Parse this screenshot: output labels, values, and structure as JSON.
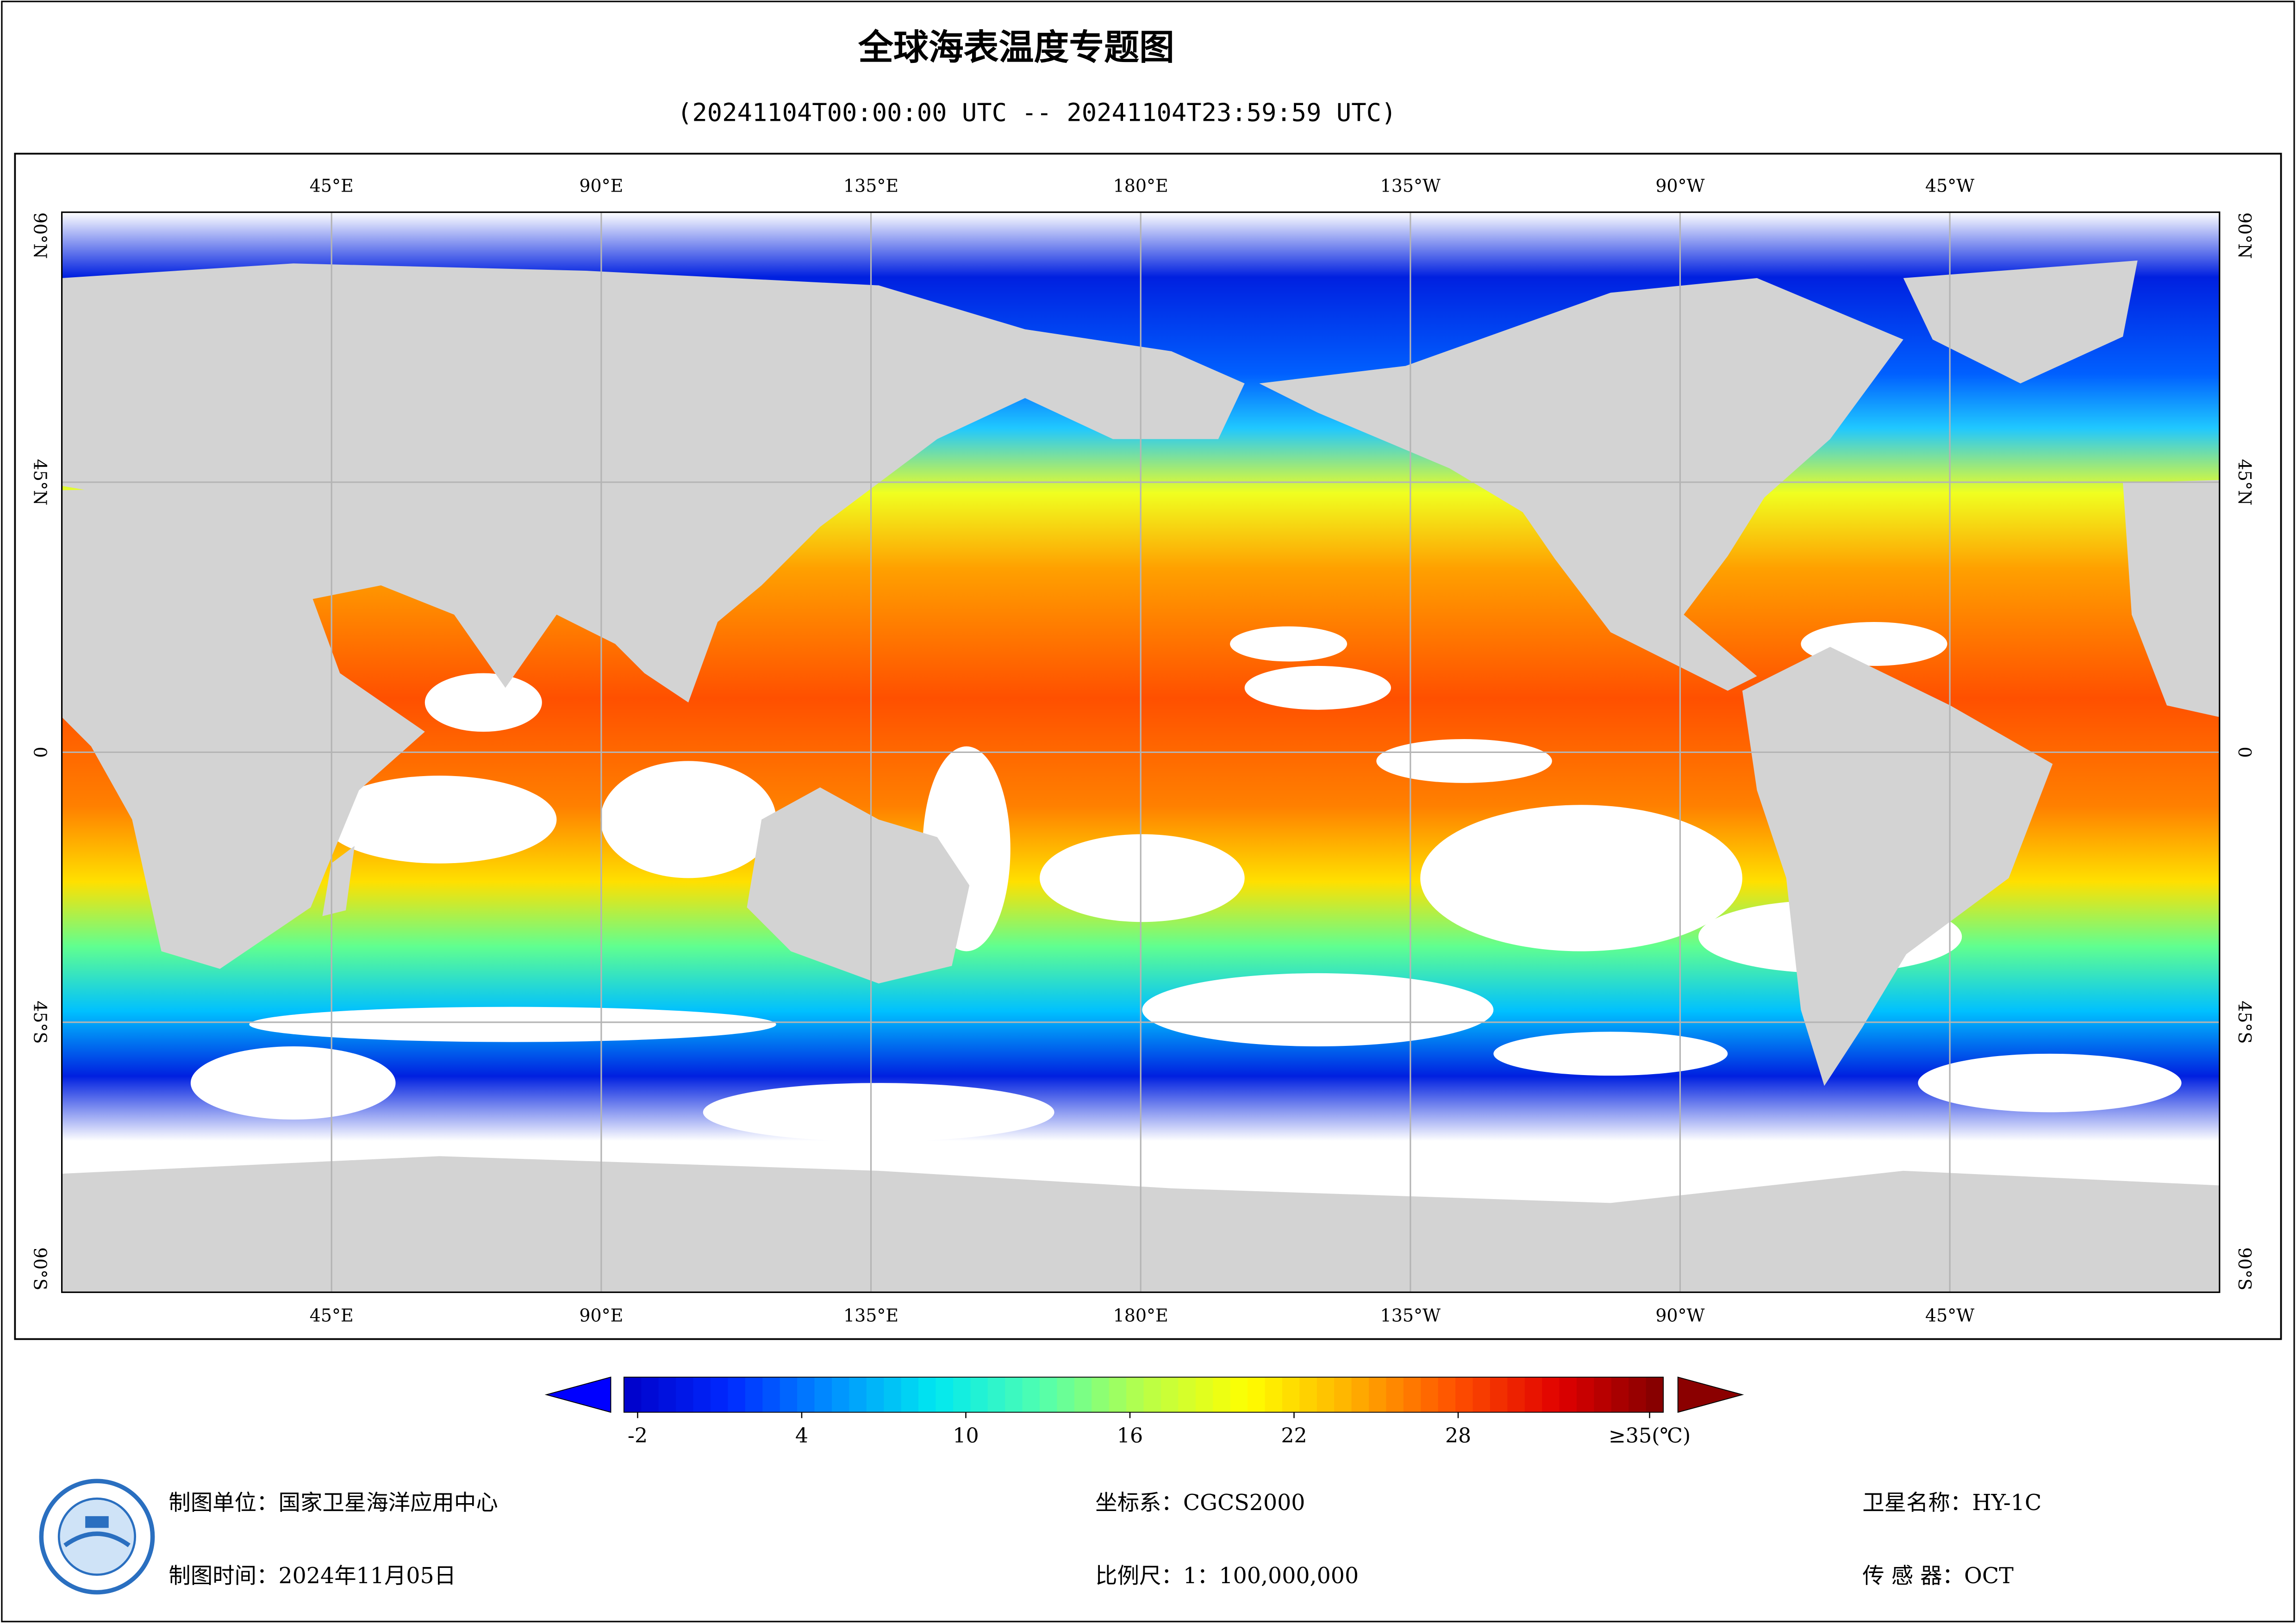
{
  "title": "全球海表温度专题图",
  "subtitle": "(20241104T00:00:00 UTC -- 20241104T23:59:59 UTC)",
  "map": {
    "lon_range": [
      0,
      360
    ],
    "lat_range": [
      -90,
      90
    ],
    "lon_ticks": [
      {
        "value": 45,
        "label": "45°E"
      },
      {
        "value": 90,
        "label": "90°E"
      },
      {
        "value": 135,
        "label": "135°E"
      },
      {
        "value": 180,
        "label": "180°E"
      },
      {
        "value": 225,
        "label": "135°W"
      },
      {
        "value": 270,
        "label": "90°W"
      },
      {
        "value": 315,
        "label": "45°W"
      }
    ],
    "lat_ticks": [
      {
        "value": 90,
        "label": "90°N"
      },
      {
        "value": 45,
        "label": "45°N"
      },
      0,
      {
        "value": -45,
        "label": "45°S"
      },
      {
        "value": -90,
        "label": "90°S"
      }
    ],
    "grid": true,
    "grid_color": "#b4b4b4"
  },
  "colorbar": {
    "range": [
      -2.5,
      35.5
    ],
    "ticks": [
      -2,
      4,
      10,
      16,
      22,
      28,
      {
        "value": 35,
        "label": "≥35(℃)"
      }
    ],
    "colors": [
      "#0000c8",
      "#0028ff",
      "#0090ff",
      "#00e8f0",
      "#50ffb0",
      "#b8ff48",
      "#ffff00",
      "#ffb000",
      "#ff5000",
      "#e00000",
      "#800000"
    ]
  },
  "footer": {
    "producer": "制图单位：国家卫星海洋应用中心",
    "date": "制图时间：2024年11月05日",
    "crs": "坐标系：CGCS2000",
    "scale": "比例尺：1：100,000,000",
    "satellite": "卫星名称：HY-1C",
    "sensor": "传 感 器：OCT"
  }
}
